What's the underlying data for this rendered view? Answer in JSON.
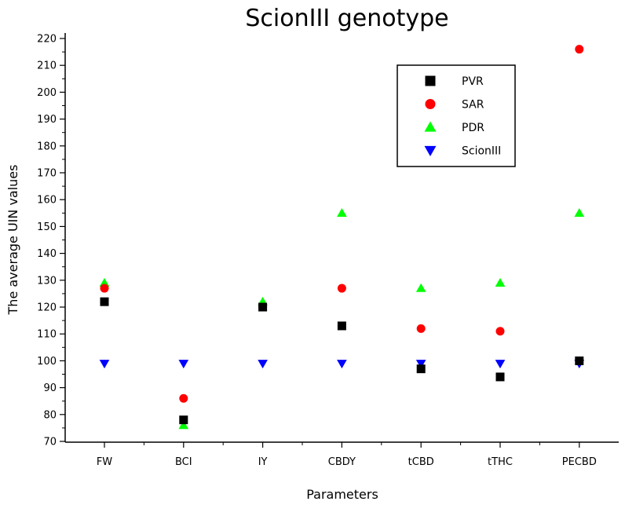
{
  "chart_data": {
    "type": "scatter",
    "title": "ScionIII genotype",
    "xlabel": "Parameters",
    "ylabel": "The average UIN values",
    "categories": [
      "FW",
      "BCI",
      "IY",
      "CBDY",
      "tCBD",
      "tTHC",
      "PECBD"
    ],
    "ylim": [
      70,
      220
    ],
    "yticks": [
      70,
      80,
      90,
      100,
      110,
      120,
      130,
      140,
      150,
      160,
      170,
      180,
      190,
      200,
      210,
      220
    ],
    "grid": false,
    "legend_position": "top-right",
    "series": [
      {
        "name": "PVR",
        "marker": "square",
        "color": "#000000",
        "values": [
          122,
          78,
          120,
          113,
          97,
          94,
          100
        ]
      },
      {
        "name": "SAR",
        "marker": "circle",
        "color": "#ff0000",
        "values": [
          127,
          86,
          120,
          127,
          112,
          111,
          216
        ]
      },
      {
        "name": "PDR",
        "marker": "triangle-up",
        "color": "#00ff00",
        "values": [
          129,
          76,
          122,
          155,
          127,
          129,
          155
        ]
      },
      {
        "name": "ScionIII",
        "marker": "triangle-down",
        "color": "#0000ff",
        "values": [
          99,
          99,
          99,
          99,
          99,
          99,
          99
        ]
      }
    ]
  }
}
